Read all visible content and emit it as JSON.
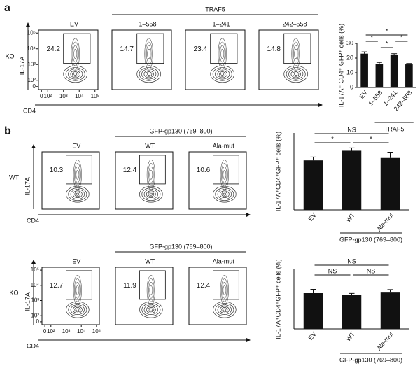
{
  "panel_a": {
    "label": "a",
    "row_label": "KO",
    "y_axis_label": "IL-17A",
    "x_axis_label": "CD4",
    "group_label": "TRAF5",
    "y_ticks": [
      {
        "value": 100000,
        "label": "10⁵"
      },
      {
        "value": 10000,
        "label": "10⁴"
      },
      {
        "value": 1000,
        "label": "10³"
      },
      {
        "value": 100,
        "label": "10²"
      },
      0
    ],
    "x_ticks": [
      0,
      {
        "value": 100,
        "label": "10²"
      },
      {
        "value": 1000,
        "label": "10³"
      },
      {
        "value": 10000,
        "label": "10⁴"
      },
      {
        "value": 100000,
        "label": "10⁵"
      }
    ],
    "plots": [
      {
        "title": "EV",
        "gate_percent": 24.2
      },
      {
        "title": "1–558",
        "gate_percent": 14.7
      },
      {
        "title": "1–241",
        "gate_percent": 23.4
      },
      {
        "title": "242–558",
        "gate_percent": 14.8
      }
    ]
  },
  "panel_b": {
    "label": "b",
    "rows": [
      {
        "row_label": "WT",
        "group_label": "GFP-gp130 (769–800)",
        "y_axis_label": "IL-17A",
        "x_axis_label": "CD4",
        "plots": [
          {
            "title": "EV",
            "gate_percent": 10.3
          },
          {
            "title": "WT",
            "gate_percent": 12.4
          },
          {
            "title": "Ala-mut",
            "gate_percent": 10.6
          }
        ]
      },
      {
        "row_label": "KO",
        "group_label": "GFP-gp130 (769–800)",
        "y_axis_label": "IL-17A",
        "x_axis_label": "CD4",
        "y_ticks": [
          {
            "value": 100000,
            "label": "10⁵"
          },
          {
            "value": 10000,
            "label": "10⁴"
          },
          {
            "value": 1000,
            "label": "10³"
          },
          {
            "value": 100,
            "label": "10²"
          },
          0
        ],
        "x_ticks": [
          0,
          {
            "value": 100,
            "label": "10²"
          },
          {
            "value": 1000,
            "label": "10³"
          },
          {
            "value": 10000,
            "label": "10⁴"
          },
          {
            "value": 100000,
            "label": "10⁵"
          }
        ],
        "plots": [
          {
            "title": "EV",
            "gate_percent": 12.7
          },
          {
            "title": "WT",
            "gate_percent": 11.9
          },
          {
            "title": "Ala-mut",
            "gate_percent": 12.4
          }
        ]
      }
    ]
  },
  "chart_data": [
    {
      "type": "bar",
      "y_label": "IL-17A⁺ CD4⁺ GFP⁺ cells (%)",
      "categories": [
        "EV",
        "1–558",
        "1–241",
        "242–558"
      ],
      "values": [
        23,
        16,
        22,
        15.7
      ],
      "errors": [
        1.2,
        1,
        1,
        0.6
      ],
      "color": "#111111",
      "ylim": [
        0,
        30
      ],
      "yticks": [
        0,
        10,
        20,
        30
      ],
      "group_label": "TRAF5",
      "significance": [
        {
          "between": [
            1,
            2
          ],
          "label": "*"
        },
        {
          "between": [
            0,
            1
          ],
          "label": "*"
        },
        {
          "between": [
            2,
            3
          ],
          "label": "*"
        },
        {
          "between": [
            0,
            3
          ],
          "label": "*"
        }
      ]
    },
    {
      "type": "bar",
      "y_label": "IL-17A⁺CD4⁺GFP⁺ cells (%)",
      "categories": [
        "EV",
        "WT",
        "Ala-mut"
      ],
      "values": [
        10.3,
        12.3,
        10.8
      ],
      "errors": [
        0.7,
        0.6,
        1.2
      ],
      "color": "#111111",
      "ylim": [
        0,
        16
      ],
      "group_label": "GFP-gp130 (769–800)",
      "significance": [
        {
          "between": [
            0,
            1
          ],
          "label": "*"
        },
        {
          "between": [
            1,
            2
          ],
          "label": "*"
        },
        {
          "between": [
            0,
            2
          ],
          "label": "NS"
        }
      ]
    },
    {
      "type": "bar",
      "y_label": "IL-17A⁺CD4⁺GFP⁺ cells (%)",
      "categories": [
        "EV",
        "WT",
        "Ala-mut"
      ],
      "values": [
        12,
        11.4,
        12.2
      ],
      "errors": [
        1.3,
        0.5,
        1
      ],
      "color": "#111111",
      "ylim": [
        0,
        20
      ],
      "group_label": "GFP-gp130 (769–800)",
      "significance": [
        {
          "between": [
            0,
            1
          ],
          "label": "NS"
        },
        {
          "between": [
            1,
            2
          ],
          "label": "NS"
        },
        {
          "between": [
            0,
            2
          ],
          "label": "NS"
        }
      ]
    }
  ]
}
